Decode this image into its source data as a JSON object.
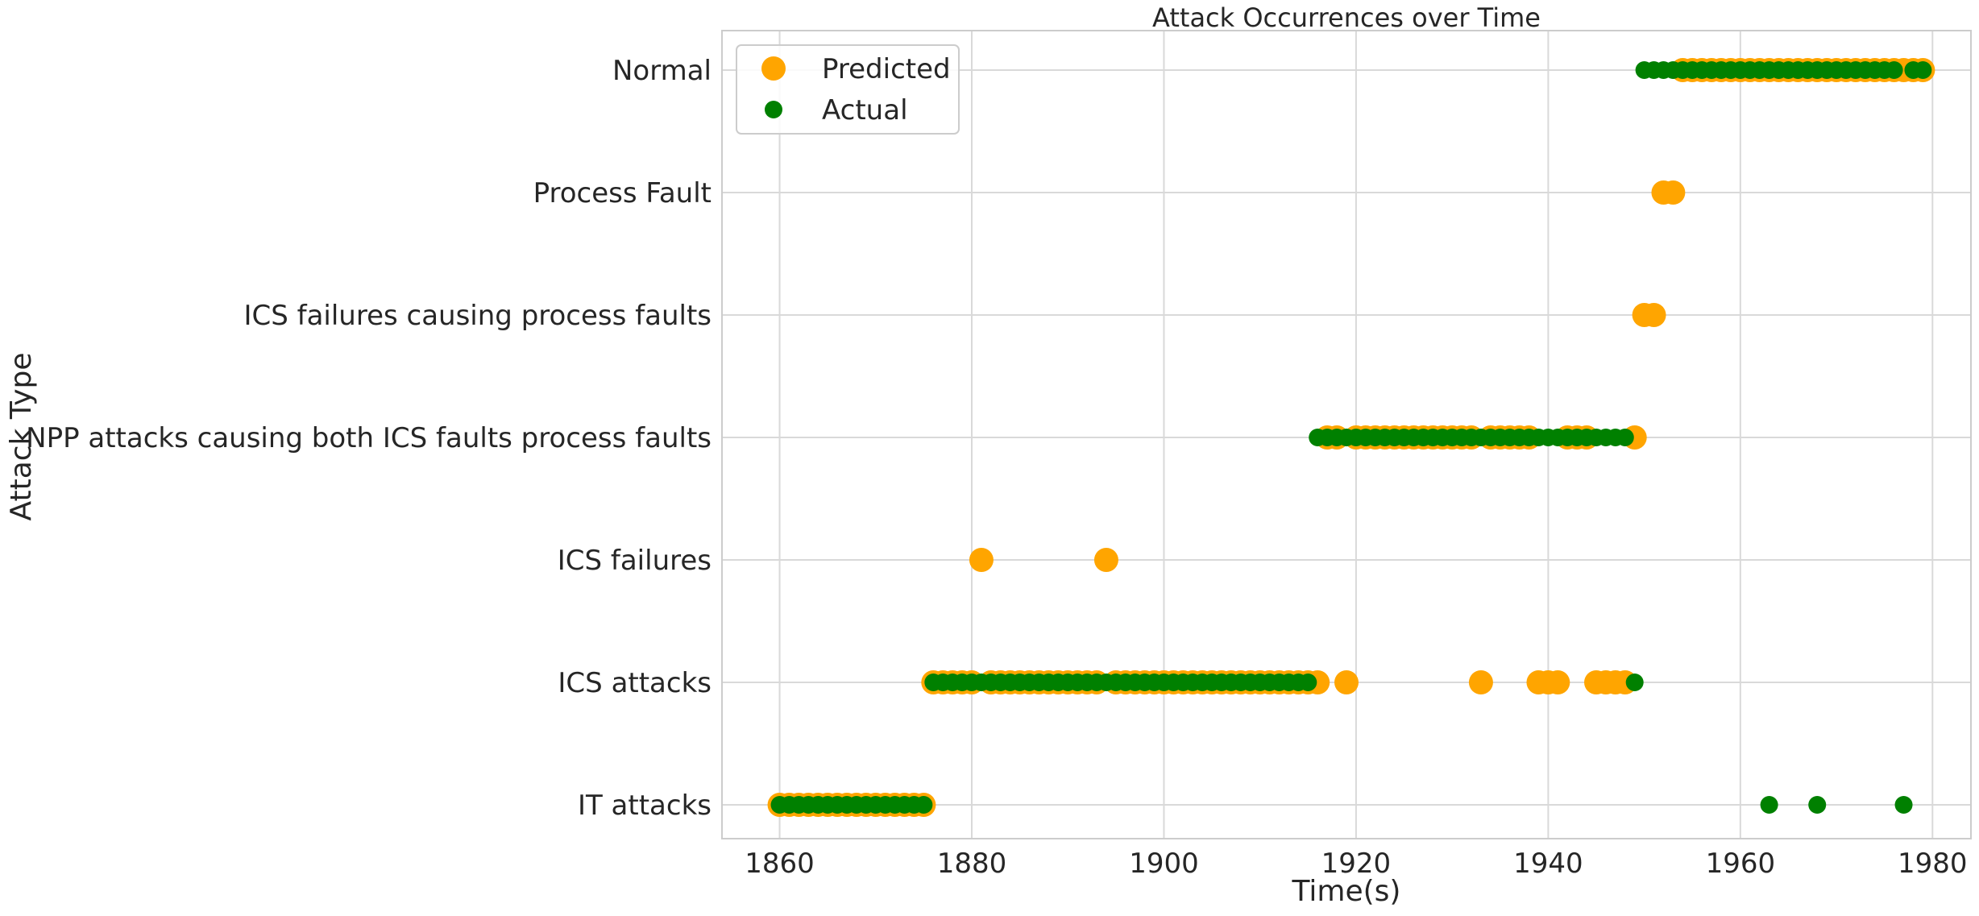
{
  "chart_data": {
    "type": "scatter",
    "title": "Attack Occurrences over Time",
    "xlabel": "Time(s)",
    "ylabel": "Attack Type",
    "xlim": [
      1854,
      1984
    ],
    "xticks": [
      1860,
      1880,
      1900,
      1920,
      1940,
      1960,
      1980
    ],
    "categories": [
      "IT attacks",
      "ICS attacks",
      "ICS failures",
      "NPP attacks causing both ICS faults process faults",
      "ICS failures causing process faults",
      "Process Fault",
      "Normal"
    ],
    "grid": true,
    "legend_position": "top-left",
    "series": [
      {
        "name": "Predicted",
        "color": "#FFA500",
        "points": [
          [
            1860,
            "IT attacks"
          ],
          [
            1861,
            "IT attacks"
          ],
          [
            1862,
            "IT attacks"
          ],
          [
            1863,
            "IT attacks"
          ],
          [
            1864,
            "IT attacks"
          ],
          [
            1865,
            "IT attacks"
          ],
          [
            1866,
            "IT attacks"
          ],
          [
            1867,
            "IT attacks"
          ],
          [
            1868,
            "IT attacks"
          ],
          [
            1869,
            "IT attacks"
          ],
          [
            1870,
            "IT attacks"
          ],
          [
            1871,
            "IT attacks"
          ],
          [
            1872,
            "IT attacks"
          ],
          [
            1873,
            "IT attacks"
          ],
          [
            1874,
            "IT attacks"
          ],
          [
            1875,
            "IT attacks"
          ],
          [
            1876,
            "ICS attacks"
          ],
          [
            1877,
            "ICS attacks"
          ],
          [
            1878,
            "ICS attacks"
          ],
          [
            1879,
            "ICS attacks"
          ],
          [
            1880,
            "ICS attacks"
          ],
          [
            1882,
            "ICS attacks"
          ],
          [
            1883,
            "ICS attacks"
          ],
          [
            1884,
            "ICS attacks"
          ],
          [
            1885,
            "ICS attacks"
          ],
          [
            1886,
            "ICS attacks"
          ],
          [
            1887,
            "ICS attacks"
          ],
          [
            1888,
            "ICS attacks"
          ],
          [
            1889,
            "ICS attacks"
          ],
          [
            1890,
            "ICS attacks"
          ],
          [
            1891,
            "ICS attacks"
          ],
          [
            1892,
            "ICS attacks"
          ],
          [
            1893,
            "ICS attacks"
          ],
          [
            1895,
            "ICS attacks"
          ],
          [
            1896,
            "ICS attacks"
          ],
          [
            1897,
            "ICS attacks"
          ],
          [
            1898,
            "ICS attacks"
          ],
          [
            1899,
            "ICS attacks"
          ],
          [
            1900,
            "ICS attacks"
          ],
          [
            1901,
            "ICS attacks"
          ],
          [
            1902,
            "ICS attacks"
          ],
          [
            1903,
            "ICS attacks"
          ],
          [
            1904,
            "ICS attacks"
          ],
          [
            1905,
            "ICS attacks"
          ],
          [
            1906,
            "ICS attacks"
          ],
          [
            1907,
            "ICS attacks"
          ],
          [
            1908,
            "ICS attacks"
          ],
          [
            1909,
            "ICS attacks"
          ],
          [
            1910,
            "ICS attacks"
          ],
          [
            1911,
            "ICS attacks"
          ],
          [
            1912,
            "ICS attacks"
          ],
          [
            1913,
            "ICS attacks"
          ],
          [
            1914,
            "ICS attacks"
          ],
          [
            1915,
            "ICS attacks"
          ],
          [
            1916,
            "ICS attacks"
          ],
          [
            1919,
            "ICS attacks"
          ],
          [
            1933,
            "ICS attacks"
          ],
          [
            1939,
            "ICS attacks"
          ],
          [
            1940,
            "ICS attacks"
          ],
          [
            1941,
            "ICS attacks"
          ],
          [
            1945,
            "ICS attacks"
          ],
          [
            1946,
            "ICS attacks"
          ],
          [
            1947,
            "ICS attacks"
          ],
          [
            1948,
            "ICS attacks"
          ],
          [
            1881,
            "ICS failures"
          ],
          [
            1894,
            "ICS failures"
          ],
          [
            1917,
            "NPP attacks causing both ICS faults process faults"
          ],
          [
            1918,
            "NPP attacks causing both ICS faults process faults"
          ],
          [
            1920,
            "NPP attacks causing both ICS faults process faults"
          ],
          [
            1921,
            "NPP attacks causing both ICS faults process faults"
          ],
          [
            1922,
            "NPP attacks causing both ICS faults process faults"
          ],
          [
            1923,
            "NPP attacks causing both ICS faults process faults"
          ],
          [
            1924,
            "NPP attacks causing both ICS faults process faults"
          ],
          [
            1925,
            "NPP attacks causing both ICS faults process faults"
          ],
          [
            1926,
            "NPP attacks causing both ICS faults process faults"
          ],
          [
            1927,
            "NPP attacks causing both ICS faults process faults"
          ],
          [
            1928,
            "NPP attacks causing both ICS faults process faults"
          ],
          [
            1929,
            "NPP attacks causing both ICS faults process faults"
          ],
          [
            1930,
            "NPP attacks causing both ICS faults process faults"
          ],
          [
            1931,
            "NPP attacks causing both ICS faults process faults"
          ],
          [
            1932,
            "NPP attacks causing both ICS faults process faults"
          ],
          [
            1934,
            "NPP attacks causing both ICS faults process faults"
          ],
          [
            1935,
            "NPP attacks causing both ICS faults process faults"
          ],
          [
            1936,
            "NPP attacks causing both ICS faults process faults"
          ],
          [
            1937,
            "NPP attacks causing both ICS faults process faults"
          ],
          [
            1938,
            "NPP attacks causing both ICS faults process faults"
          ],
          [
            1942,
            "NPP attacks causing both ICS faults process faults"
          ],
          [
            1943,
            "NPP attacks causing both ICS faults process faults"
          ],
          [
            1944,
            "NPP attacks causing both ICS faults process faults"
          ],
          [
            1949,
            "NPP attacks causing both ICS faults process faults"
          ],
          [
            1950,
            "ICS failures causing process faults"
          ],
          [
            1951,
            "ICS failures causing process faults"
          ],
          [
            1952,
            "Process Fault"
          ],
          [
            1953,
            "Process Fault"
          ],
          [
            1954,
            "Normal"
          ],
          [
            1955,
            "Normal"
          ],
          [
            1956,
            "Normal"
          ],
          [
            1957,
            "Normal"
          ],
          [
            1958,
            "Normal"
          ],
          [
            1959,
            "Normal"
          ],
          [
            1960,
            "Normal"
          ],
          [
            1961,
            "Normal"
          ],
          [
            1962,
            "Normal"
          ],
          [
            1963,
            "Normal"
          ],
          [
            1964,
            "Normal"
          ],
          [
            1965,
            "Normal"
          ],
          [
            1966,
            "Normal"
          ],
          [
            1967,
            "Normal"
          ],
          [
            1968,
            "Normal"
          ],
          [
            1969,
            "Normal"
          ],
          [
            1970,
            "Normal"
          ],
          [
            1971,
            "Normal"
          ],
          [
            1972,
            "Normal"
          ],
          [
            1973,
            "Normal"
          ],
          [
            1974,
            "Normal"
          ],
          [
            1975,
            "Normal"
          ],
          [
            1976,
            "Normal"
          ],
          [
            1977,
            "Normal"
          ],
          [
            1978,
            "Normal"
          ],
          [
            1979,
            "Normal"
          ]
        ]
      },
      {
        "name": "Actual",
        "color": "#008000",
        "points": [
          [
            1860,
            "IT attacks"
          ],
          [
            1861,
            "IT attacks"
          ],
          [
            1862,
            "IT attacks"
          ],
          [
            1863,
            "IT attacks"
          ],
          [
            1864,
            "IT attacks"
          ],
          [
            1865,
            "IT attacks"
          ],
          [
            1866,
            "IT attacks"
          ],
          [
            1867,
            "IT attacks"
          ],
          [
            1868,
            "IT attacks"
          ],
          [
            1869,
            "IT attacks"
          ],
          [
            1870,
            "IT attacks"
          ],
          [
            1871,
            "IT attacks"
          ],
          [
            1872,
            "IT attacks"
          ],
          [
            1873,
            "IT attacks"
          ],
          [
            1874,
            "IT attacks"
          ],
          [
            1875,
            "IT attacks"
          ],
          [
            1963,
            "IT attacks"
          ],
          [
            1968,
            "IT attacks"
          ],
          [
            1977,
            "IT attacks"
          ],
          [
            1876,
            "ICS attacks"
          ],
          [
            1877,
            "ICS attacks"
          ],
          [
            1878,
            "ICS attacks"
          ],
          [
            1879,
            "ICS attacks"
          ],
          [
            1880,
            "ICS attacks"
          ],
          [
            1881,
            "ICS attacks"
          ],
          [
            1882,
            "ICS attacks"
          ],
          [
            1883,
            "ICS attacks"
          ],
          [
            1884,
            "ICS attacks"
          ],
          [
            1885,
            "ICS attacks"
          ],
          [
            1886,
            "ICS attacks"
          ],
          [
            1887,
            "ICS attacks"
          ],
          [
            1888,
            "ICS attacks"
          ],
          [
            1889,
            "ICS attacks"
          ],
          [
            1890,
            "ICS attacks"
          ],
          [
            1891,
            "ICS attacks"
          ],
          [
            1892,
            "ICS attacks"
          ],
          [
            1893,
            "ICS attacks"
          ],
          [
            1894,
            "ICS attacks"
          ],
          [
            1895,
            "ICS attacks"
          ],
          [
            1896,
            "ICS attacks"
          ],
          [
            1897,
            "ICS attacks"
          ],
          [
            1898,
            "ICS attacks"
          ],
          [
            1899,
            "ICS attacks"
          ],
          [
            1900,
            "ICS attacks"
          ],
          [
            1901,
            "ICS attacks"
          ],
          [
            1902,
            "ICS attacks"
          ],
          [
            1903,
            "ICS attacks"
          ],
          [
            1904,
            "ICS attacks"
          ],
          [
            1905,
            "ICS attacks"
          ],
          [
            1906,
            "ICS attacks"
          ],
          [
            1907,
            "ICS attacks"
          ],
          [
            1908,
            "ICS attacks"
          ],
          [
            1909,
            "ICS attacks"
          ],
          [
            1910,
            "ICS attacks"
          ],
          [
            1911,
            "ICS attacks"
          ],
          [
            1912,
            "ICS attacks"
          ],
          [
            1913,
            "ICS attacks"
          ],
          [
            1914,
            "ICS attacks"
          ],
          [
            1915,
            "ICS attacks"
          ],
          [
            1949,
            "ICS attacks"
          ],
          [
            1916,
            "NPP attacks causing both ICS faults process faults"
          ],
          [
            1917,
            "NPP attacks causing both ICS faults process faults"
          ],
          [
            1918,
            "NPP attacks causing both ICS faults process faults"
          ],
          [
            1919,
            "NPP attacks causing both ICS faults process faults"
          ],
          [
            1920,
            "NPP attacks causing both ICS faults process faults"
          ],
          [
            1921,
            "NPP attacks causing both ICS faults process faults"
          ],
          [
            1922,
            "NPP attacks causing both ICS faults process faults"
          ],
          [
            1923,
            "NPP attacks causing both ICS faults process faults"
          ],
          [
            1924,
            "NPP attacks causing both ICS faults process faults"
          ],
          [
            1925,
            "NPP attacks causing both ICS faults process faults"
          ],
          [
            1926,
            "NPP attacks causing both ICS faults process faults"
          ],
          [
            1927,
            "NPP attacks causing both ICS faults process faults"
          ],
          [
            1928,
            "NPP attacks causing both ICS faults process faults"
          ],
          [
            1929,
            "NPP attacks causing both ICS faults process faults"
          ],
          [
            1930,
            "NPP attacks causing both ICS faults process faults"
          ],
          [
            1931,
            "NPP attacks causing both ICS faults process faults"
          ],
          [
            1932,
            "NPP attacks causing both ICS faults process faults"
          ],
          [
            1933,
            "NPP attacks causing both ICS faults process faults"
          ],
          [
            1934,
            "NPP attacks causing both ICS faults process faults"
          ],
          [
            1935,
            "NPP attacks causing both ICS faults process faults"
          ],
          [
            1936,
            "NPP attacks causing both ICS faults process faults"
          ],
          [
            1937,
            "NPP attacks causing both ICS faults process faults"
          ],
          [
            1938,
            "NPP attacks causing both ICS faults process faults"
          ],
          [
            1939,
            "NPP attacks causing both ICS faults process faults"
          ],
          [
            1940,
            "NPP attacks causing both ICS faults process faults"
          ],
          [
            1941,
            "NPP attacks causing both ICS faults process faults"
          ],
          [
            1942,
            "NPP attacks causing both ICS faults process faults"
          ],
          [
            1943,
            "NPP attacks causing both ICS faults process faults"
          ],
          [
            1944,
            "NPP attacks causing both ICS faults process faults"
          ],
          [
            1945,
            "NPP attacks causing both ICS faults process faults"
          ],
          [
            1946,
            "NPP attacks causing both ICS faults process faults"
          ],
          [
            1947,
            "NPP attacks causing both ICS faults process faults"
          ],
          [
            1948,
            "NPP attacks causing both ICS faults process faults"
          ],
          [
            1950,
            "Normal"
          ],
          [
            1951,
            "Normal"
          ],
          [
            1952,
            "Normal"
          ],
          [
            1953,
            "Normal"
          ],
          [
            1954,
            "Normal"
          ],
          [
            1955,
            "Normal"
          ],
          [
            1956,
            "Normal"
          ],
          [
            1957,
            "Normal"
          ],
          [
            1958,
            "Normal"
          ],
          [
            1959,
            "Normal"
          ],
          [
            1960,
            "Normal"
          ],
          [
            1961,
            "Normal"
          ],
          [
            1962,
            "Normal"
          ],
          [
            1963,
            "Normal"
          ],
          [
            1964,
            "Normal"
          ],
          [
            1965,
            "Normal"
          ],
          [
            1966,
            "Normal"
          ],
          [
            1967,
            "Normal"
          ],
          [
            1968,
            "Normal"
          ],
          [
            1969,
            "Normal"
          ],
          [
            1970,
            "Normal"
          ],
          [
            1971,
            "Normal"
          ],
          [
            1972,
            "Normal"
          ],
          [
            1973,
            "Normal"
          ],
          [
            1974,
            "Normal"
          ],
          [
            1975,
            "Normal"
          ],
          [
            1976,
            "Normal"
          ],
          [
            1978,
            "Normal"
          ],
          [
            1979,
            "Normal"
          ]
        ]
      }
    ]
  }
}
